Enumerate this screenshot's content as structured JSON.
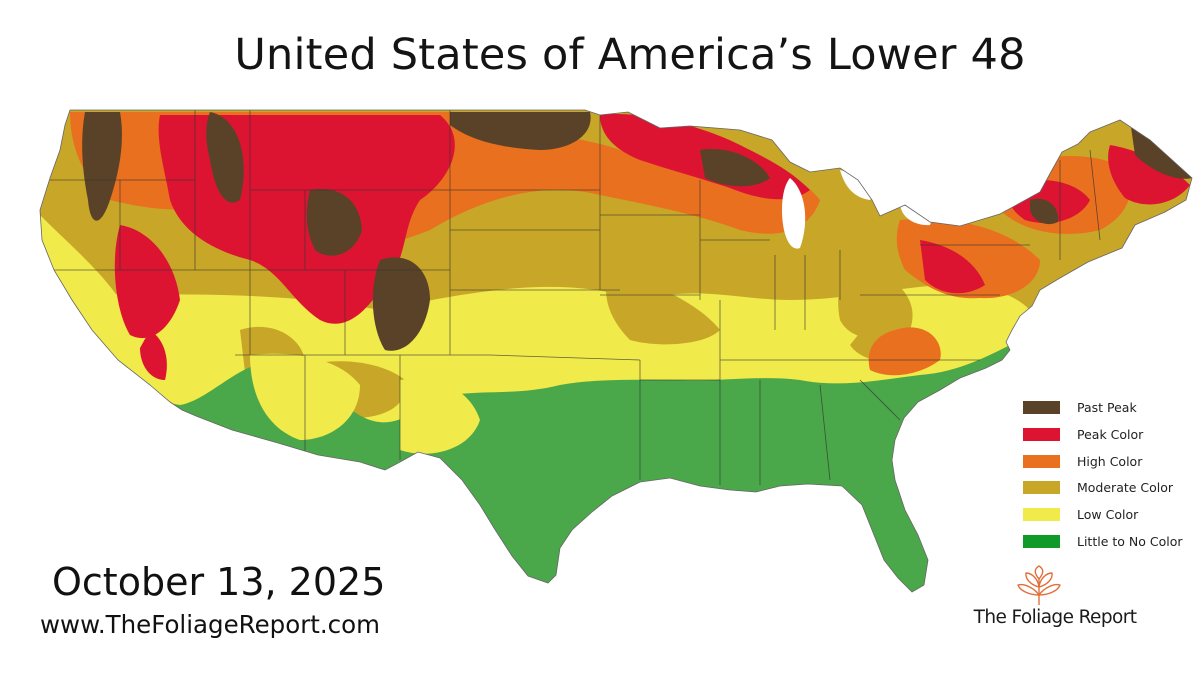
{
  "title": "United States of America’s Lower 48",
  "date": "October 13, 2025",
  "website": "www.TheFoliageReport.com",
  "brand": {
    "name": "The Foliage Report",
    "logo_icon": "leaf-logo-icon"
  },
  "colors": {
    "past_peak": "#5a4228",
    "peak": "#dc1432",
    "high": "#e8701e",
    "moderate": "#c8a628",
    "low": "#f0ea4a",
    "none": "#4aa84a"
  },
  "legend": [
    {
      "key": "past_peak",
      "label": "Past Peak",
      "color": "#5a4228"
    },
    {
      "key": "peak",
      "label": "Peak Color",
      "color": "#dc1432"
    },
    {
      "key": "high",
      "label": "High Color",
      "color": "#e8701e"
    },
    {
      "key": "moderate",
      "label": "Moderate Color",
      "color": "#c8a628"
    },
    {
      "key": "low",
      "label": "Low Color",
      "color": "#f0ea4a"
    },
    {
      "key": "none",
      "label": "Little to No Color",
      "color": "#4aa84a"
    }
  ]
}
